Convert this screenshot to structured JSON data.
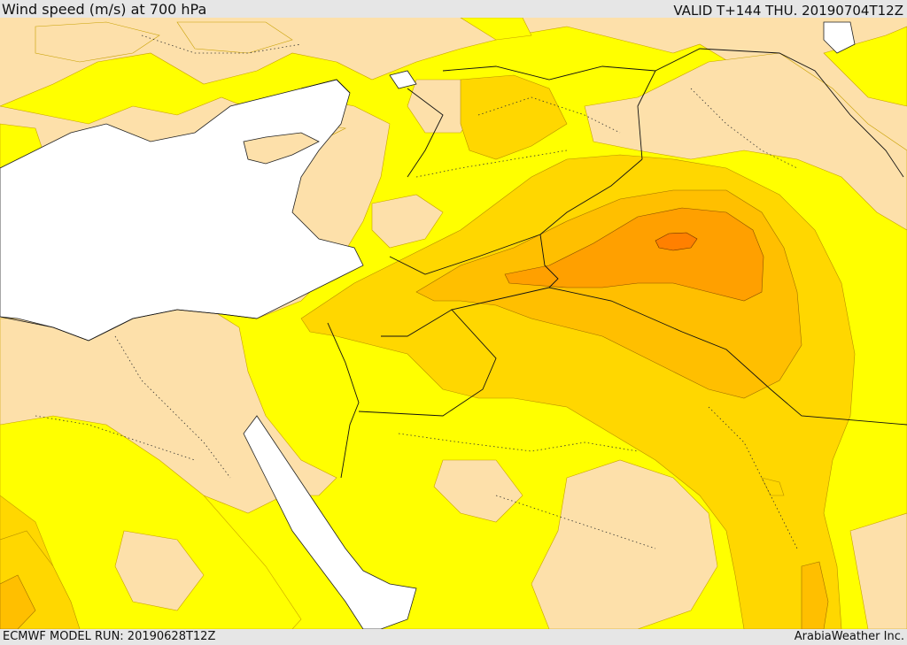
{
  "header": {
    "title": "Wind speed (m/s) at 700 hPa",
    "valid": "VALID T+144 THU. 20190704T12Z"
  },
  "footer": {
    "model_run": "ECMWF MODEL RUN: 20190628T12Z",
    "credit": "ArabiaWeather Inc."
  },
  "map": {
    "region": "Eastern Mediterranean and Middle East",
    "colors": {
      "sea": "#ffffff",
      "calm_land": "#fde0aa",
      "band_1": "#ffff00",
      "band_2": "#ffd700",
      "band_3": "#ffbf00",
      "band_4": "#ffa000",
      "band_5": "#ff8000"
    }
  }
}
